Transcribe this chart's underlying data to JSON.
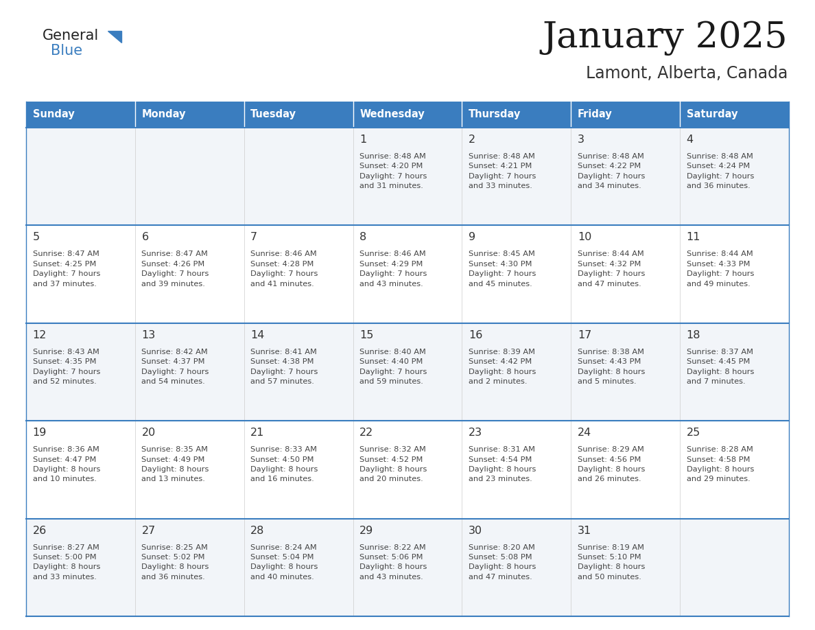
{
  "title": "January 2025",
  "subtitle": "Lamont, Alberta, Canada",
  "header_color": "#3a7dbf",
  "header_text_color": "#ffffff",
  "day_names": [
    "Sunday",
    "Monday",
    "Tuesday",
    "Wednesday",
    "Thursday",
    "Friday",
    "Saturday"
  ],
  "row_bg_odd": "#f2f5f9",
  "row_bg_even": "#ffffff",
  "border_color": "#3a7dbf",
  "day_num_color": "#333333",
  "cell_text_color": "#444444",
  "logo_general_color": "#222222",
  "logo_blue_color": "#3a7dbf",
  "logo_triangle_color": "#3a7dbf",
  "weeks": [
    [
      {
        "day": "",
        "info": ""
      },
      {
        "day": "",
        "info": ""
      },
      {
        "day": "",
        "info": ""
      },
      {
        "day": "1",
        "info": "Sunrise: 8:48 AM\nSunset: 4:20 PM\nDaylight: 7 hours\nand 31 minutes."
      },
      {
        "day": "2",
        "info": "Sunrise: 8:48 AM\nSunset: 4:21 PM\nDaylight: 7 hours\nand 33 minutes."
      },
      {
        "day": "3",
        "info": "Sunrise: 8:48 AM\nSunset: 4:22 PM\nDaylight: 7 hours\nand 34 minutes."
      },
      {
        "day": "4",
        "info": "Sunrise: 8:48 AM\nSunset: 4:24 PM\nDaylight: 7 hours\nand 36 minutes."
      }
    ],
    [
      {
        "day": "5",
        "info": "Sunrise: 8:47 AM\nSunset: 4:25 PM\nDaylight: 7 hours\nand 37 minutes."
      },
      {
        "day": "6",
        "info": "Sunrise: 8:47 AM\nSunset: 4:26 PM\nDaylight: 7 hours\nand 39 minutes."
      },
      {
        "day": "7",
        "info": "Sunrise: 8:46 AM\nSunset: 4:28 PM\nDaylight: 7 hours\nand 41 minutes."
      },
      {
        "day": "8",
        "info": "Sunrise: 8:46 AM\nSunset: 4:29 PM\nDaylight: 7 hours\nand 43 minutes."
      },
      {
        "day": "9",
        "info": "Sunrise: 8:45 AM\nSunset: 4:30 PM\nDaylight: 7 hours\nand 45 minutes."
      },
      {
        "day": "10",
        "info": "Sunrise: 8:44 AM\nSunset: 4:32 PM\nDaylight: 7 hours\nand 47 minutes."
      },
      {
        "day": "11",
        "info": "Sunrise: 8:44 AM\nSunset: 4:33 PM\nDaylight: 7 hours\nand 49 minutes."
      }
    ],
    [
      {
        "day": "12",
        "info": "Sunrise: 8:43 AM\nSunset: 4:35 PM\nDaylight: 7 hours\nand 52 minutes."
      },
      {
        "day": "13",
        "info": "Sunrise: 8:42 AM\nSunset: 4:37 PM\nDaylight: 7 hours\nand 54 minutes."
      },
      {
        "day": "14",
        "info": "Sunrise: 8:41 AM\nSunset: 4:38 PM\nDaylight: 7 hours\nand 57 minutes."
      },
      {
        "day": "15",
        "info": "Sunrise: 8:40 AM\nSunset: 4:40 PM\nDaylight: 7 hours\nand 59 minutes."
      },
      {
        "day": "16",
        "info": "Sunrise: 8:39 AM\nSunset: 4:42 PM\nDaylight: 8 hours\nand 2 minutes."
      },
      {
        "day": "17",
        "info": "Sunrise: 8:38 AM\nSunset: 4:43 PM\nDaylight: 8 hours\nand 5 minutes."
      },
      {
        "day": "18",
        "info": "Sunrise: 8:37 AM\nSunset: 4:45 PM\nDaylight: 8 hours\nand 7 minutes."
      }
    ],
    [
      {
        "day": "19",
        "info": "Sunrise: 8:36 AM\nSunset: 4:47 PM\nDaylight: 8 hours\nand 10 minutes."
      },
      {
        "day": "20",
        "info": "Sunrise: 8:35 AM\nSunset: 4:49 PM\nDaylight: 8 hours\nand 13 minutes."
      },
      {
        "day": "21",
        "info": "Sunrise: 8:33 AM\nSunset: 4:50 PM\nDaylight: 8 hours\nand 16 minutes."
      },
      {
        "day": "22",
        "info": "Sunrise: 8:32 AM\nSunset: 4:52 PM\nDaylight: 8 hours\nand 20 minutes."
      },
      {
        "day": "23",
        "info": "Sunrise: 8:31 AM\nSunset: 4:54 PM\nDaylight: 8 hours\nand 23 minutes."
      },
      {
        "day": "24",
        "info": "Sunrise: 8:29 AM\nSunset: 4:56 PM\nDaylight: 8 hours\nand 26 minutes."
      },
      {
        "day": "25",
        "info": "Sunrise: 8:28 AM\nSunset: 4:58 PM\nDaylight: 8 hours\nand 29 minutes."
      }
    ],
    [
      {
        "day": "26",
        "info": "Sunrise: 8:27 AM\nSunset: 5:00 PM\nDaylight: 8 hours\nand 33 minutes."
      },
      {
        "day": "27",
        "info": "Sunrise: 8:25 AM\nSunset: 5:02 PM\nDaylight: 8 hours\nand 36 minutes."
      },
      {
        "day": "28",
        "info": "Sunrise: 8:24 AM\nSunset: 5:04 PM\nDaylight: 8 hours\nand 40 minutes."
      },
      {
        "day": "29",
        "info": "Sunrise: 8:22 AM\nSunset: 5:06 PM\nDaylight: 8 hours\nand 43 minutes."
      },
      {
        "day": "30",
        "info": "Sunrise: 8:20 AM\nSunset: 5:08 PM\nDaylight: 8 hours\nand 47 minutes."
      },
      {
        "day": "31",
        "info": "Sunrise: 8:19 AM\nSunset: 5:10 PM\nDaylight: 8 hours\nand 50 minutes."
      },
      {
        "day": "",
        "info": ""
      }
    ]
  ]
}
